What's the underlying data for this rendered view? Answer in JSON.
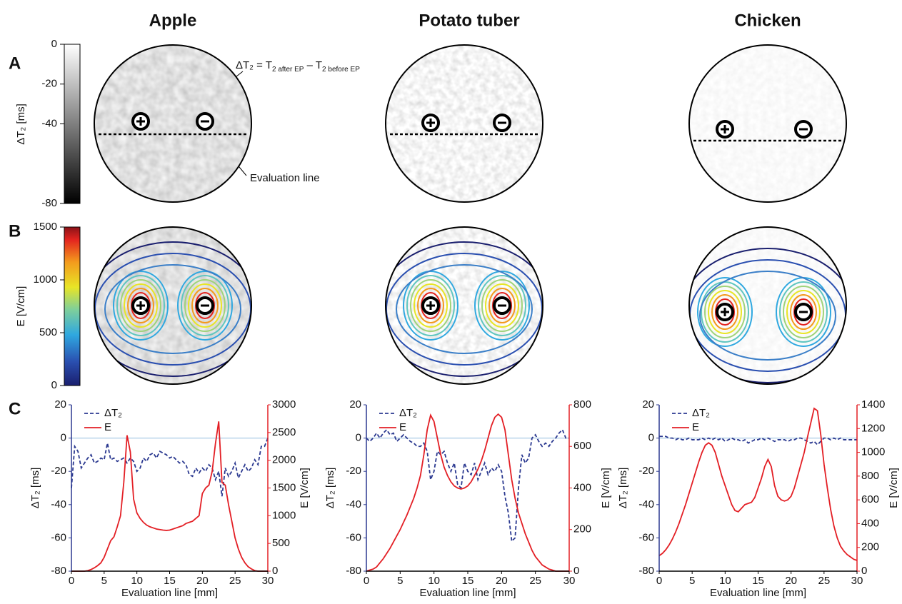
{
  "columns": [
    "Apple",
    "Potato tuber",
    "Chicken"
  ],
  "panel_labels": [
    "A",
    "B",
    "C"
  ],
  "equation": [
    "ΔT₂ = T",
    "2 after EP",
    " – T",
    "2 before EP"
  ],
  "evaluation_note": "Evaluation line",
  "colorbar_a": {
    "label": "ΔT₂ [ms]",
    "ylim": [
      -80,
      0
    ],
    "yticks": [
      0,
      -20,
      -40,
      -80
    ]
  },
  "colorbar_b": {
    "label": "E [V/cm]",
    "ylim": [
      0,
      1500
    ],
    "yticks": [
      0,
      500,
      1000,
      1500
    ]
  },
  "chart_data": [
    {
      "type": "line",
      "xlabel": "Evaluation line [mm]",
      "ylabel": "ΔT₂ [ms]",
      "y2label": "E [V/cm]",
      "xlim": [
        0,
        30
      ],
      "xticks": [
        0,
        5,
        10,
        15,
        20,
        25,
        30
      ],
      "ylim": [
        -80,
        20
      ],
      "yticks": [
        -80,
        -60,
        -40,
        -20,
        0,
        20
      ],
      "y2lim": [
        0,
        3000
      ],
      "y2ticks": [
        0,
        500,
        1000,
        1500,
        2000,
        2500,
        3000
      ],
      "zero_line": true,
      "x": [
        0,
        0.5,
        1,
        1.5,
        2,
        2.5,
        3,
        3.5,
        4,
        4.5,
        5,
        5.5,
        6,
        6.5,
        7,
        7.5,
        8,
        8.5,
        9,
        9.5,
        10,
        10.5,
        11,
        11.5,
        12,
        12.5,
        13,
        13.5,
        14,
        14.5,
        15,
        15.5,
        16,
        16.5,
        17,
        17.5,
        18,
        18.5,
        19,
        19.5,
        20,
        20.5,
        21,
        21.5,
        22,
        22.5,
        23,
        23.5,
        24,
        24.5,
        25,
        25.5,
        26,
        26.5,
        27,
        27.5,
        28,
        28.5,
        29,
        29.5,
        30
      ],
      "series": [
        {
          "name": "ΔT₂",
          "color": "#2b3990",
          "dash": true,
          "values": [
            -30,
            -5,
            -8,
            -18,
            -15,
            -12,
            -10,
            -15,
            -14,
            -12,
            -13,
            -3,
            -13,
            -12,
            -14,
            -13,
            -12,
            -15,
            -12,
            -14,
            -20,
            -18,
            -12,
            -14,
            -10,
            -9,
            -12,
            -8,
            -9,
            -10,
            -12,
            -11,
            -13,
            -15,
            -14,
            -16,
            -22,
            -23,
            -18,
            -21,
            -18,
            -20,
            -16,
            -18,
            -25,
            -20,
            -35,
            -18,
            -23,
            -20,
            -15,
            -24,
            -20,
            -16,
            -20,
            -18,
            -13,
            -16,
            -5,
            -5,
            0
          ]
        },
        {
          "name": "E",
          "color": "#e31e24",
          "axis": "y2",
          "values": [
            0,
            0,
            0,
            0,
            0,
            10,
            30,
            60,
            100,
            150,
            250,
            400,
            550,
            620,
            800,
            1000,
            1600,
            2450,
            2150,
            1300,
            1050,
            950,
            880,
            830,
            800,
            780,
            760,
            750,
            740,
            735,
            740,
            760,
            780,
            800,
            820,
            860,
            880,
            900,
            950,
            1000,
            1400,
            1500,
            1550,
            1800,
            2300,
            2700,
            1600,
            1550,
            1200,
            900,
            600,
            400,
            250,
            150,
            80,
            40,
            10,
            0,
            0,
            0,
            0
          ]
        }
      ]
    },
    {
      "type": "line",
      "xlabel": "Evaluation line [mm]",
      "ylabel": "ΔT₂ [ms]",
      "y2label": "E [V/cm]",
      "xlim": [
        0,
        30
      ],
      "xticks": [
        0,
        5,
        10,
        15,
        20,
        25,
        30
      ],
      "ylim": [
        -80,
        20
      ],
      "yticks": [
        -80,
        -60,
        -40,
        -20,
        0,
        20
      ],
      "y2lim": [
        0,
        800
      ],
      "y2ticks": [
        0,
        200,
        400,
        600,
        800
      ],
      "zero_line": true,
      "x": [
        0,
        0.5,
        1,
        1.5,
        2,
        2.5,
        3,
        3.5,
        4,
        4.5,
        5,
        5.5,
        6,
        6.5,
        7,
        7.5,
        8,
        8.5,
        9,
        9.5,
        10,
        10.5,
        11,
        11.5,
        12,
        12.5,
        13,
        13.5,
        14,
        14.5,
        15,
        15.5,
        16,
        16.5,
        17,
        17.5,
        18,
        18.5,
        19,
        19.5,
        20,
        20.5,
        21,
        21.5,
        22,
        22.5,
        23,
        23.5,
        24,
        24.5,
        25,
        25.5,
        26,
        26.5,
        27,
        27.5,
        28,
        28.5,
        29,
        29.5,
        30
      ],
      "series": [
        {
          "name": "ΔT₂",
          "color": "#2b3990",
          "dash": true,
          "values": [
            0,
            -2,
            0,
            3,
            0,
            3,
            5,
            2,
            3,
            -2,
            0,
            2,
            0,
            -2,
            -3,
            -5,
            -5,
            -3,
            -8,
            -25,
            -20,
            -8,
            -10,
            -8,
            -15,
            -20,
            -15,
            -28,
            -30,
            -15,
            -20,
            -22,
            -15,
            -25,
            -20,
            -15,
            -22,
            -18,
            -20,
            -16,
            -20,
            -35,
            -45,
            -62,
            -60,
            -30,
            -10,
            -15,
            -12,
            0,
            2,
            -2,
            -5,
            -3,
            -5,
            -2,
            0,
            3,
            5,
            0,
            0
          ]
        },
        {
          "name": "E",
          "color": "#e31e24",
          "axis": "y2",
          "values": [
            0,
            5,
            10,
            20,
            40,
            60,
            85,
            110,
            140,
            170,
            200,
            235,
            270,
            310,
            350,
            400,
            460,
            560,
            680,
            750,
            720,
            640,
            560,
            500,
            460,
            430,
            410,
            400,
            395,
            400,
            410,
            430,
            460,
            490,
            530,
            580,
            640,
            700,
            740,
            755,
            740,
            680,
            560,
            440,
            350,
            280,
            230,
            180,
            140,
            100,
            70,
            50,
            30,
            20,
            10,
            5,
            0,
            0,
            0,
            0,
            0
          ]
        }
      ]
    },
    {
      "type": "line",
      "xlabel": "Evaluation line [mm]",
      "ylabel": "ΔT₂ [ms]",
      "y2label": "E [V/cm]",
      "xlim": [
        0,
        30
      ],
      "xticks": [
        0,
        5,
        10,
        15,
        20,
        25,
        30
      ],
      "ylim": [
        -80,
        20
      ],
      "yticks": [
        -80,
        -60,
        -40,
        -20,
        0,
        20
      ],
      "y2lim": [
        0,
        1400
      ],
      "y2ticks": [
        0,
        200,
        400,
        600,
        800,
        1000,
        1200,
        1400
      ],
      "zero_line": true,
      "x": [
        0,
        0.5,
        1,
        1.5,
        2,
        2.5,
        3,
        3.5,
        4,
        4.5,
        5,
        5.5,
        6,
        6.5,
        7,
        7.5,
        8,
        8.5,
        9,
        9.5,
        10,
        10.5,
        11,
        11.5,
        12,
        12.5,
        13,
        13.5,
        14,
        14.5,
        15,
        15.5,
        16,
        16.5,
        17,
        17.5,
        18,
        18.5,
        19,
        19.5,
        20,
        20.5,
        21,
        21.5,
        22,
        22.5,
        23,
        23.5,
        24,
        24.5,
        25,
        25.5,
        26,
        26.5,
        27,
        27.5,
        28,
        28.5,
        29,
        29.5,
        30
      ],
      "series": [
        {
          "name": "ΔT₂",
          "color": "#2b3990",
          "dash": true,
          "values": [
            1,
            1,
            1,
            0,
            0,
            -1,
            0,
            -1,
            -1,
            0,
            -1,
            -1,
            -1,
            0,
            -1,
            0,
            -1,
            0,
            -1,
            0,
            -2,
            -1,
            0,
            -1,
            -1,
            -2,
            -1,
            -3,
            -2,
            -1,
            -1,
            0,
            -1,
            0,
            -1,
            -2,
            -1,
            -1,
            -1,
            -2,
            -1,
            -1,
            0,
            0,
            -1,
            -2,
            -3,
            -2,
            -4,
            -2,
            0,
            0,
            -1,
            0,
            -1,
            0,
            -1,
            -1,
            -1,
            -1,
            -1
          ]
        },
        {
          "name": "E",
          "color": "#e31e24",
          "axis": "y2",
          "values": [
            130,
            150,
            180,
            220,
            270,
            330,
            400,
            480,
            560,
            650,
            740,
            830,
            920,
            1000,
            1060,
            1080,
            1060,
            1000,
            900,
            800,
            720,
            640,
            560,
            510,
            500,
            530,
            560,
            570,
            580,
            620,
            700,
            780,
            880,
            940,
            880,
            720,
            630,
            600,
            590,
            600,
            630,
            700,
            800,
            900,
            1000,
            1130,
            1250,
            1370,
            1350,
            1150,
            900,
            700,
            520,
            380,
            280,
            210,
            170,
            140,
            120,
            100,
            90
          ]
        }
      ]
    }
  ]
}
